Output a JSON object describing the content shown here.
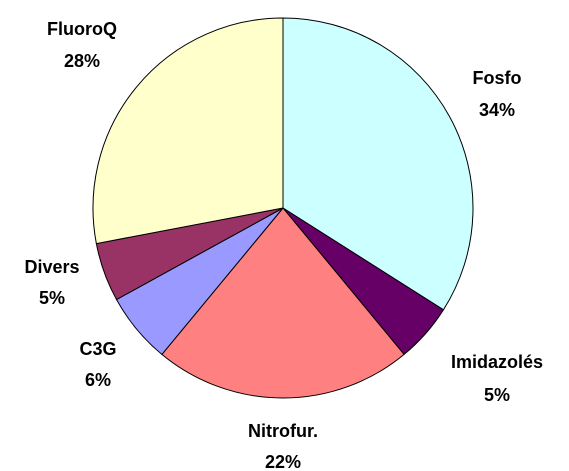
{
  "chart_data": {
    "type": "pie",
    "categories": [
      "Fosfo",
      "Imidazolés",
      "Nitrofur.",
      "C3G",
      "Divers",
      "FluoroQ"
    ],
    "values": [
      34,
      5,
      22,
      6,
      5,
      28
    ],
    "value_labels": [
      "34%",
      "5%",
      "22%",
      "6%",
      "5%",
      "28%"
    ],
    "colors": [
      "#ccffff",
      "#660066",
      "#ff8080",
      "#9999ff",
      "#993366",
      "#ffffcc"
    ]
  }
}
